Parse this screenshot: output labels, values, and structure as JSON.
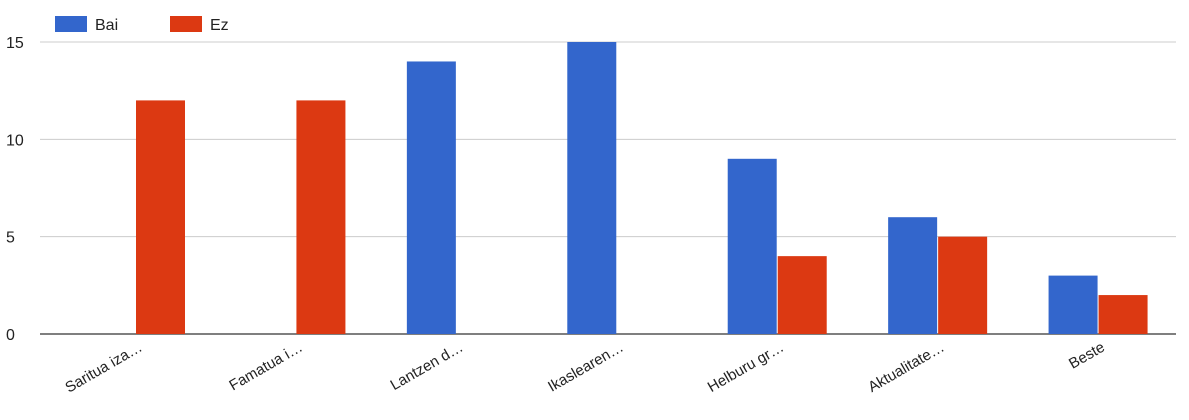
{
  "chart_data": {
    "type": "bar",
    "title": "",
    "xlabel": "",
    "ylabel": "",
    "categories": [
      "Saritua iza…",
      "Famatua i…",
      "Lantzen d…",
      "Ikaslearen…",
      "Helburu gr…",
      "Aktualitate…",
      "Beste"
    ],
    "series": [
      {
        "name": "Bai",
        "color": "#3366cc",
        "values": [
          0,
          0,
          14,
          15,
          9,
          6,
          3
        ]
      },
      {
        "name": "Ez",
        "color": "#dc3912",
        "values": [
          12,
          12,
          0,
          0,
          4,
          5,
          2
        ]
      }
    ],
    "ylim": [
      0,
      15
    ],
    "yticks": [
      0,
      5,
      10,
      15
    ],
    "grid": true,
    "legend_position": "top-left"
  }
}
